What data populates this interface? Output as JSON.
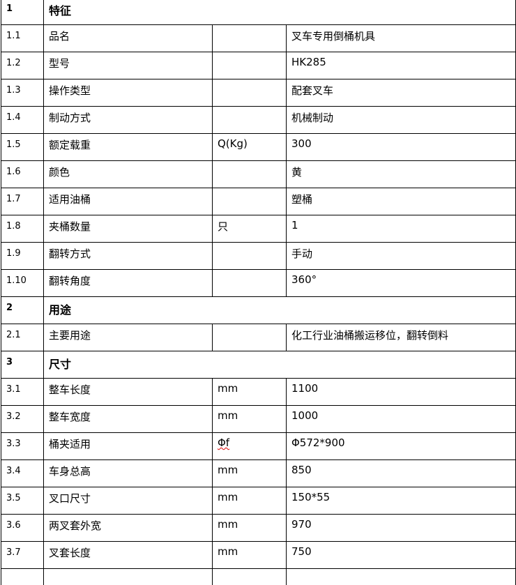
{
  "sections": [
    {
      "number": "1",
      "title": "特征",
      "rows": [
        {
          "number": "1.1",
          "name": "品名",
          "value": "叉车专用倒桶机具"
        },
        {
          "number": "1.2",
          "name": "型号",
          "value": "HK285"
        },
        {
          "number": "1.3",
          "name": "操作类型",
          "value": "配套叉车"
        },
        {
          "number": "1.4",
          "name": "制动方式",
          "value": "机械制动"
        },
        {
          "number": "1.5",
          "name": "额定载重",
          "unit": "Q(Kg)",
          "value": "300"
        },
        {
          "number": "1.6",
          "name": "颜色",
          "value": "黄"
        },
        {
          "number": "1.7",
          "name": "适用油桶",
          "value": "塑桶"
        },
        {
          "number": "1.8",
          "name": "夹桶数量",
          "unit": "只",
          "value": "1"
        },
        {
          "number": "1.9",
          "name": "翻转方式",
          "value": "手动"
        },
        {
          "number": "1.10",
          "name": "翻转角度",
          "value": "360°"
        }
      ]
    },
    {
      "number": "2",
      "title": "用途",
      "rows": [
        {
          "number": "2.1",
          "name": "主要用途",
          "value": "化工行业油桶搬运移位，翻转倒料"
        }
      ]
    },
    {
      "number": "3",
      "title": "尺寸",
      "rows": [
        {
          "number": "3.1",
          "name": "整车长度",
          "unit": "mm",
          "value": "1100"
        },
        {
          "number": "3.2",
          "name": "整车宽度",
          "unit": "mm",
          "value": "1000"
        },
        {
          "number": "3.3",
          "name": "桶夹适用",
          "unit": "Φf",
          "value": "Φ572*900"
        },
        {
          "number": "3.4",
          "name": "车身总高",
          "unit": "mm",
          "value": "850"
        },
        {
          "number": "3.5",
          "name": "叉口尺寸",
          "unit": "mm",
          "value": "150*55"
        },
        {
          "number": "3.6",
          "name": "两叉套外宽",
          "unit": "mm",
          "value": "970"
        },
        {
          "number": "3.7",
          "name": "叉套长度",
          "unit": "mm",
          "value": "750"
        }
      ]
    }
  ]
}
